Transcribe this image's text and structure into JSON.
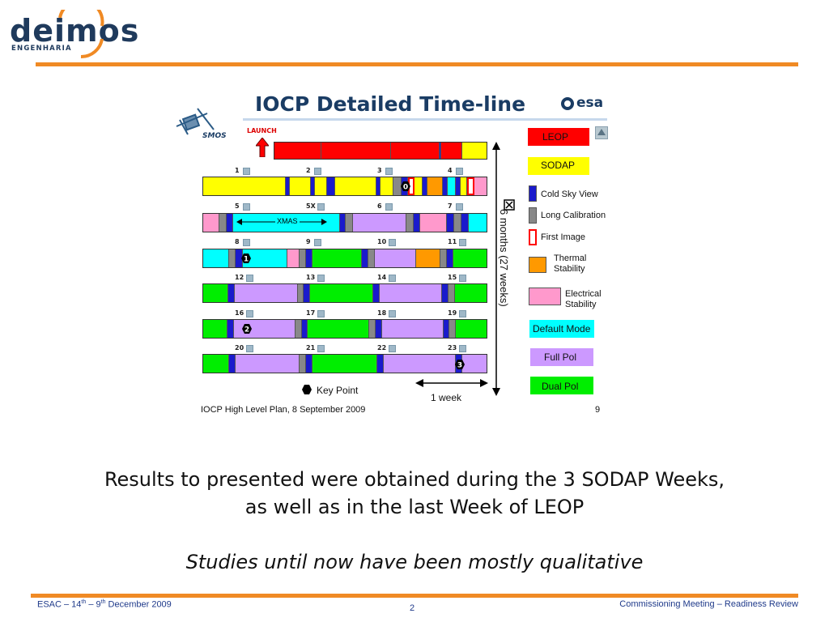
{
  "header": {
    "logo_word": "deimos",
    "logo_sub": "ENGENHARIA"
  },
  "figure": {
    "title": "IOCP Detailed Time-line",
    "esa_label": "esa",
    "smos_label": "SMOS",
    "launch_label": "LAUNCH",
    "xmas_label": "XMAS",
    "duration_label": "6 months  (27 weeks)",
    "week_label": "1 week",
    "keypoint_label": "Key Point",
    "footer": "IOCP High Level Plan, 8 September 2009",
    "page": "9",
    "colors": {
      "leop": "#ff0000",
      "sodap": "#ffff00",
      "cold_sky": "#1a1acc",
      "long_cal": "#888888",
      "first_image": "#ffffff",
      "thermal": "#ff9900",
      "electrical": "#ff99cc",
      "default_mode": "#00ffff",
      "full_pol": "#cc99ff",
      "dual_pol": "#00ee00"
    },
    "week_numbers": [
      "1",
      "2",
      "3",
      "4",
      "5",
      "5X",
      "6",
      "7",
      "8",
      "9",
      "10",
      "11",
      "12",
      "13",
      "14",
      "15",
      "16",
      "17",
      "18",
      "19",
      "20",
      "21",
      "22",
      "23"
    ],
    "key_points": [
      "0",
      "1",
      "2",
      "3"
    ],
    "legend": [
      {
        "label": "LEOP"
      },
      {
        "label": "SODAP"
      },
      {
        "label": "Cold Sky View"
      },
      {
        "label": "Long Calibration"
      },
      {
        "label": "First Image"
      },
      {
        "label": "Thermal Stability"
      },
      {
        "label": "Electrical Stability"
      },
      {
        "label": "Default Mode"
      },
      {
        "label": "Full Pol"
      },
      {
        "label": "Dual Pol"
      }
    ]
  },
  "body": {
    "line1": "Results to presented were obtained during the 3 SODAP Weeks,",
    "line2": "as well as in the last Week of LEOP",
    "line3": "Studies until now have been mostly qualitative"
  },
  "footer": {
    "left_a": "ESAC – 14",
    "left_sup1": "th",
    "left_b": " – 9",
    "left_sup2": "th",
    "left_c": " December 2009",
    "page": "2",
    "right": "Commissioning Meeting – Readiness Review"
  }
}
